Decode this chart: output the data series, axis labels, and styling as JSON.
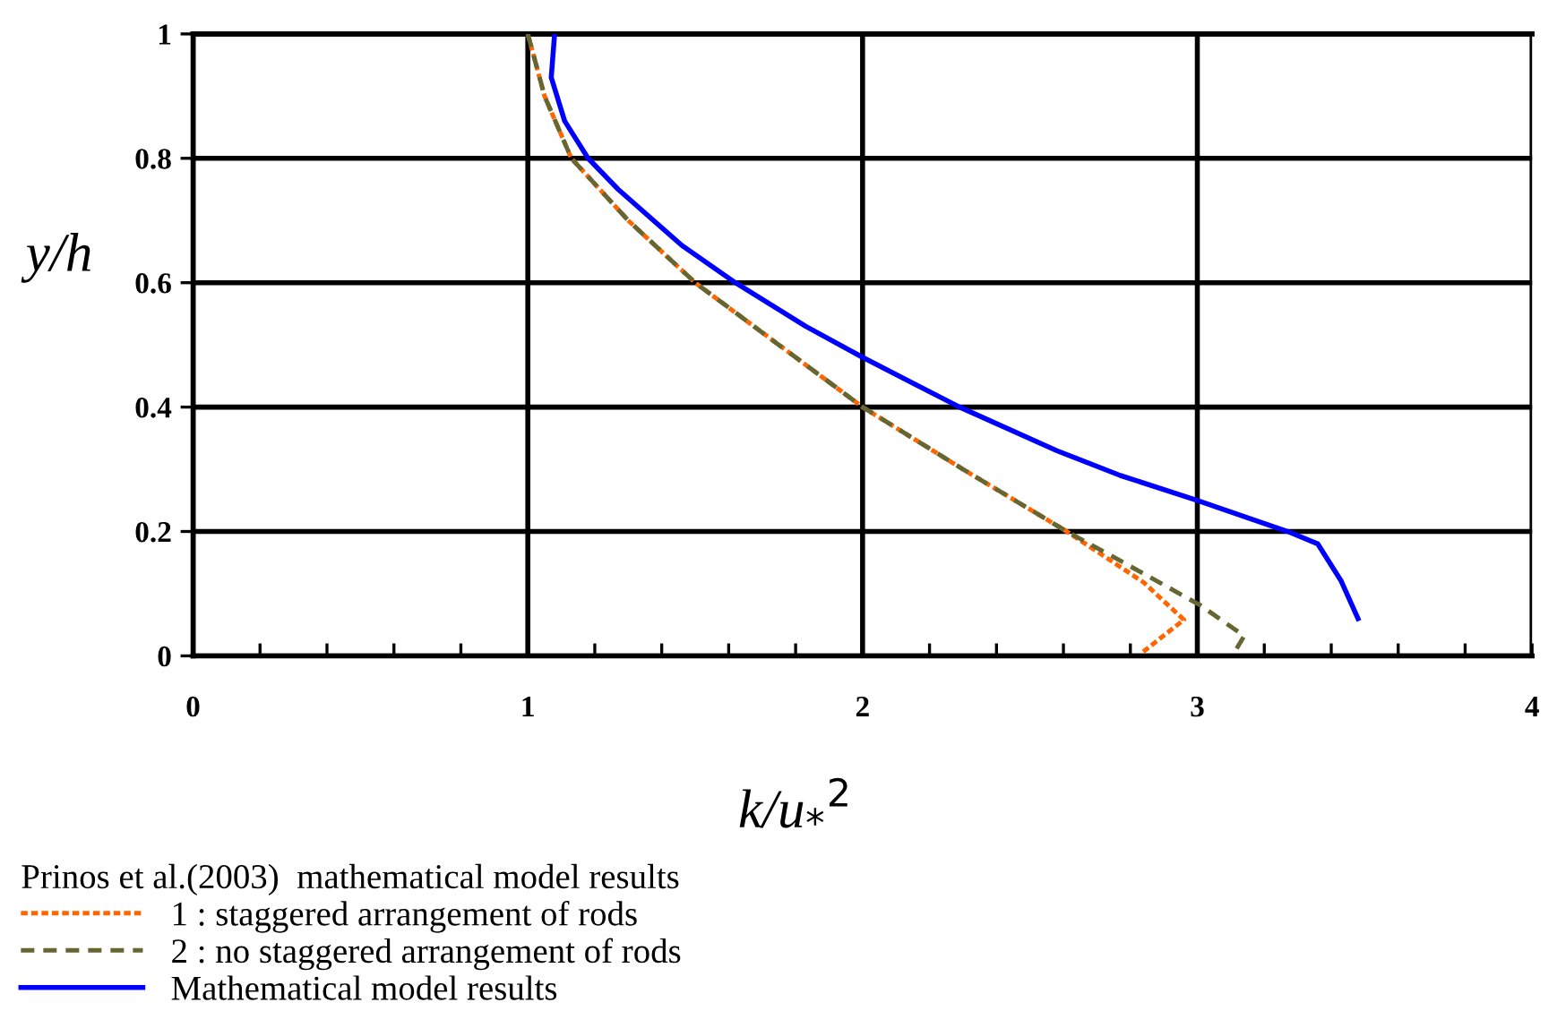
{
  "chart_data": {
    "type": "line",
    "xlabel": "k/u$_{*}$$^{2}$",
    "ylabel": "y/h",
    "legend_title": "Prinos et al.(2003)  mathematical model results",
    "xlim": [
      0,
      4
    ],
    "ylim": [
      0,
      1
    ],
    "xticks": [
      0,
      {
        "value": 0.2,
        "label": null
      },
      {
        "value": 0.4,
        "label": null
      },
      {
        "value": 0.6,
        "label": null
      },
      {
        "value": 0.8,
        "label": null
      },
      1,
      {
        "value": 1.2,
        "label": null
      },
      {
        "value": 1.4,
        "label": null
      },
      {
        "value": 1.6,
        "label": null
      },
      {
        "value": 1.8,
        "label": null
      },
      2,
      {
        "value": 2.2,
        "label": null
      },
      {
        "value": 2.4,
        "label": null
      },
      {
        "value": 2.6,
        "label": null
      },
      {
        "value": 2.8,
        "label": null
      },
      3,
      {
        "value": 3.2,
        "label": null
      },
      {
        "value": 3.4,
        "label": null
      },
      {
        "value": 3.6,
        "label": null
      },
      {
        "value": 3.8,
        "label": null
      },
      4
    ],
    "yticks": [
      0,
      0.2,
      0.4,
      0.6,
      0.8,
      1
    ],
    "grid": true,
    "legend": "bottom left",
    "marker": "none",
    "series": [
      {
        "name": "1 : staggered arrangement of rods",
        "color": "#ff6600",
        "line_style": "dotted",
        "x": [
          1.0,
          1.05,
          1.13,
          1.3,
          1.5,
          1.75,
          2.0,
          2.3,
          2.61,
          2.84,
          2.96,
          2.91,
          2.83
        ],
        "values": [
          1.0,
          0.9,
          0.8,
          0.7,
          0.6,
          0.5,
          0.4,
          0.3,
          0.2,
          0.118,
          0.058,
          0.037,
          0.003
        ]
      },
      {
        "name": "2 : no staggered arrangement of rods",
        "color": "#666633",
        "line_style": "dashed",
        "x": [
          1.0,
          1.05,
          1.13,
          1.3,
          1.5,
          1.75,
          2.0,
          2.3,
          2.61,
          2.77,
          3.01,
          3.14,
          3.11
        ],
        "values": [
          1.0,
          0.9,
          0.8,
          0.7,
          0.6,
          0.5,
          0.4,
          0.3,
          0.2,
          0.153,
          0.081,
          0.032,
          0.005
        ]
      },
      {
        "name": "Mathematical model results",
        "color": "#0000ff",
        "line_style": "solid",
        "x": [
          1.08,
          1.07,
          1.11,
          1.18,
          1.27,
          1.46,
          1.62,
          1.83,
          2.0,
          2.29,
          2.58,
          2.77,
          3.0,
          3.27,
          3.36,
          3.43,
          3.48
        ],
        "values": [
          1.0,
          0.93,
          0.86,
          0.8,
          0.75,
          0.66,
          0.6,
          0.53,
          0.48,
          0.4,
          0.33,
          0.29,
          0.25,
          0.2,
          0.18,
          0.12,
          0.06
        ]
      }
    ]
  }
}
